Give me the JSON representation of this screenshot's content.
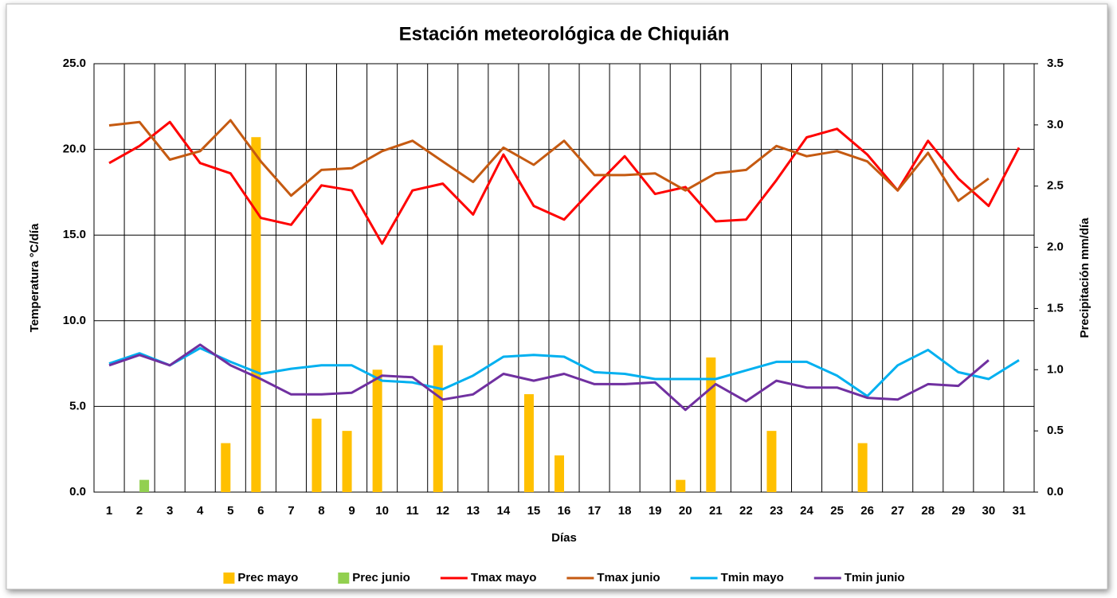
{
  "chart_data": {
    "type": "bar",
    "title": "Estación meteorológica de Chiquián",
    "x_label": "Días",
    "y_label": "Temperatura °C/día",
    "y2_label": "Precipitación mm/día",
    "categories": [
      "1",
      "2",
      "3",
      "4",
      "5",
      "6",
      "7",
      "8",
      "9",
      "10",
      "11",
      "12",
      "13",
      "14",
      "15",
      "16",
      "17",
      "18",
      "19",
      "20",
      "21",
      "22",
      "23",
      "24",
      "25",
      "26",
      "27",
      "28",
      "29",
      "30",
      "31"
    ],
    "ylim": [
      0,
      25
    ],
    "yticks": [
      {
        "value": 0,
        "label": "0.0"
      },
      {
        "value": 5,
        "label": "5.0"
      },
      {
        "value": 10,
        "label": "10.0"
      },
      {
        "value": 15,
        "label": "15.0"
      },
      {
        "value": 20,
        "label": "20.0"
      },
      {
        "value": 25,
        "label": "25.0"
      }
    ],
    "y2lim": [
      0,
      3.5
    ],
    "y2ticks": [
      {
        "value": 0,
        "label": "0.0"
      },
      0.5,
      {
        "value": 1,
        "label": "1.0"
      },
      1.5,
      {
        "value": 2,
        "label": "2.0"
      },
      2.5,
      {
        "value": 3,
        "label": "3.0"
      },
      3.5
    ],
    "grid": true,
    "legend": "bottom",
    "series": [
      {
        "name": "Prec mayo",
        "type": "bar",
        "axis": "y2",
        "color": "#ffc000",
        "values": [
          0,
          0,
          0,
          0,
          0.4,
          2.9,
          0,
          0.6,
          0.5,
          1.0,
          0,
          1.2,
          0,
          0,
          0.8,
          0.3,
          0,
          0,
          0,
          0.1,
          1.1,
          0,
          0.5,
          0,
          0,
          0.4,
          0,
          0,
          0,
          0,
          0
        ]
      },
      {
        "name": "Prec junio",
        "type": "bar",
        "axis": "y2",
        "color": "#92d050",
        "values": [
          0,
          0.1,
          0,
          0,
          0,
          0,
          0,
          0,
          0,
          0,
          0,
          0,
          0,
          0,
          0,
          0,
          0,
          0,
          0,
          0,
          0,
          0,
          0,
          0,
          0,
          0,
          0,
          0,
          0,
          0,
          0
        ]
      },
      {
        "name": "Tmax mayo",
        "type": "line",
        "color": "#ff0000",
        "values": [
          19.2,
          20.2,
          21.6,
          19.2,
          18.6,
          16.0,
          15.6,
          17.9,
          17.6,
          14.5,
          17.6,
          18.0,
          16.2,
          19.7,
          16.7,
          15.9,
          17.8,
          19.6,
          17.4,
          17.8,
          15.8,
          15.9,
          18.2,
          20.7,
          21.2,
          19.7,
          17.6,
          20.5,
          18.3,
          16.7,
          20.1
        ]
      },
      {
        "name": "Tmax junio",
        "type": "line",
        "color": "#c55a11",
        "values": [
          21.4,
          21.6,
          19.4,
          19.9,
          21.7,
          19.3,
          17.3,
          18.8,
          18.9,
          19.9,
          20.5,
          19.3,
          18.1,
          20.1,
          19.1,
          20.5,
          18.5,
          18.5,
          18.6,
          17.6,
          18.6,
          18.8,
          20.2,
          19.6,
          19.9,
          19.3,
          17.6,
          19.8,
          17.0,
          18.3,
          null
        ]
      },
      {
        "name": "Tmin mayo",
        "type": "line",
        "color": "#00b0f0",
        "values": [
          7.5,
          8.1,
          7.4,
          8.4,
          7.6,
          6.9,
          7.2,
          7.4,
          7.4,
          6.5,
          6.4,
          6.0,
          6.8,
          7.9,
          8.0,
          7.9,
          7.0,
          6.9,
          6.6,
          6.6,
          6.6,
          7.1,
          7.6,
          7.6,
          6.8,
          5.6,
          7.4,
          8.3,
          7.0,
          6.6,
          7.7
        ]
      },
      {
        "name": "Tmin junio",
        "type": "line",
        "color": "#7030a0",
        "values": [
          7.4,
          8.0,
          7.4,
          8.6,
          7.4,
          6.6,
          5.7,
          5.7,
          5.8,
          6.8,
          6.7,
          5.4,
          5.7,
          6.9,
          6.5,
          6.9,
          6.3,
          6.3,
          6.4,
          4.8,
          6.3,
          5.3,
          6.5,
          6.1,
          6.1,
          5.5,
          5.4,
          6.3,
          6.2,
          7.7,
          null
        ]
      }
    ]
  }
}
